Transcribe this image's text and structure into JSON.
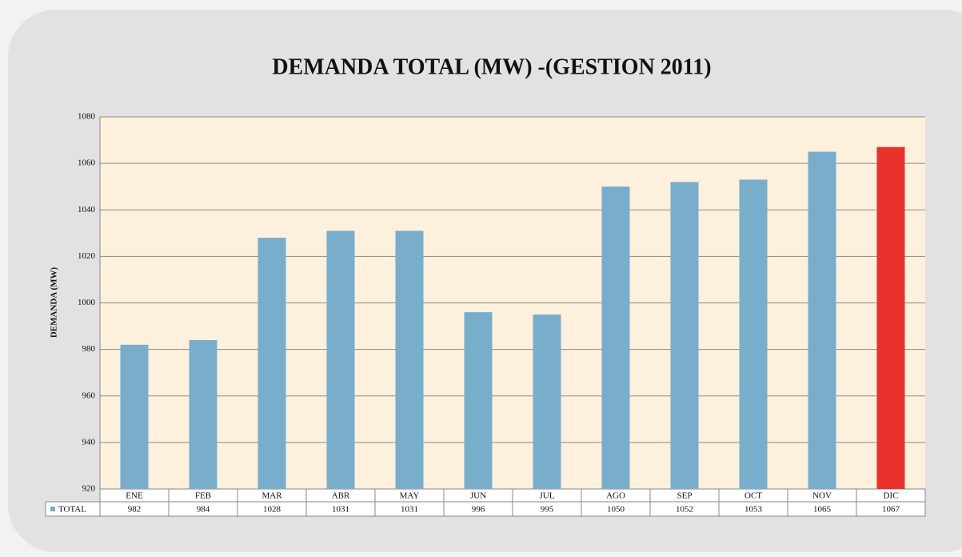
{
  "chart_data": {
    "type": "bar",
    "title": "DEMANDA TOTAL (MW) -(GESTION 2011)",
    "y_label": "DEMANDA (MW)",
    "categories": [
      "ENE",
      "FEB",
      "MAR",
      "ABR",
      "MAY",
      "JUN",
      "JUL",
      "AGO",
      "SEP",
      "OCT",
      "NOV",
      "DIC"
    ],
    "series": [
      {
        "name": "TOTAL",
        "colors": [
          "#78aecb",
          "#78aecb",
          "#78aecb",
          "#78aecb",
          "#78aecb",
          "#78aecb",
          "#78aecb",
          "#78aecb",
          "#78aecb",
          "#78aecb",
          "#78aecb",
          "#e8312b"
        ],
        "values": [
          982,
          984,
          1028,
          1031,
          1031,
          996,
          995,
          1050,
          1052,
          1053,
          1065,
          1067
        ]
      }
    ],
    "ylim": [
      920,
      1080
    ],
    "yticks": [
      920,
      940,
      960,
      980,
      1000,
      1020,
      1040,
      1060,
      1080
    ],
    "grid": true
  }
}
